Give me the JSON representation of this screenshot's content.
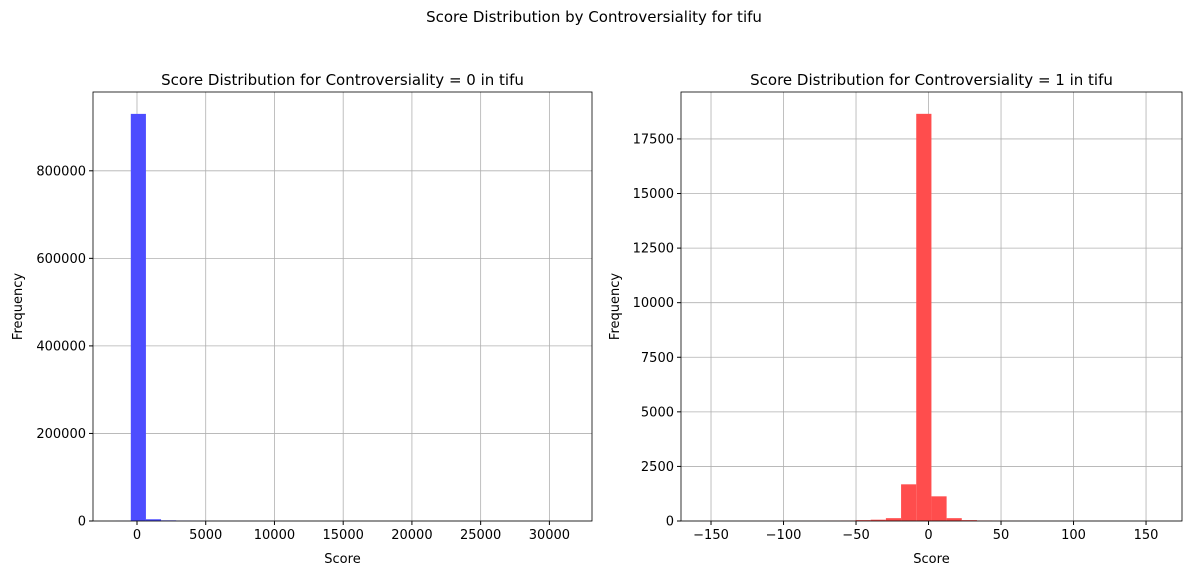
{
  "title": "Score Distribution by Controversiality for tifu",
  "chart_data": [
    {
      "type": "histogram",
      "title": "Score Distribution for Controversiality = 0 in tifu",
      "x_label": "Score",
      "y_label": "Frequency",
      "color": "#4d4dff",
      "grid": true,
      "bins": [
        -1550,
        -450,
        650,
        1750,
        2850,
        3950,
        5050,
        6150,
        7250,
        8350,
        9450,
        10550,
        11650,
        12750,
        13850,
        14950,
        16050,
        17150,
        18250,
        19350,
        20450,
        21550,
        22650,
        23750,
        24850,
        25950,
        27050,
        28150,
        29250,
        30350,
        31450
      ],
      "values": [
        300,
        930000,
        4000,
        1500,
        700,
        350,
        200,
        120,
        80,
        50,
        40,
        30,
        20,
        15,
        10,
        8,
        6,
        5,
        4,
        3,
        3,
        2,
        2,
        1,
        1,
        1,
        1,
        0,
        0,
        1
      ],
      "xlim": [
        -3200,
        33100
      ],
      "xticks": [
        0,
        5000,
        10000,
        15000,
        20000,
        25000,
        30000
      ],
      "ylim": [
        0,
        980000
      ],
      "yticks": [
        0,
        200000,
        400000,
        600000,
        800000
      ]
    },
    {
      "type": "histogram",
      "title": "Score Distribution for Controversiality = 1 in tifu",
      "x_label": "Score",
      "y_label": "Frequency",
      "color": "#ff4d4d",
      "grid": true,
      "bins": [
        -155,
        -144.53,
        -134.07,
        -123.6,
        -113.13,
        -102.67,
        -92.2,
        -81.73,
        -71.27,
        -60.8,
        -50.33,
        -39.87,
        -29.4,
        -18.93,
        -8.47,
        2,
        12.47,
        22.93,
        33.4,
        43.87,
        54.33,
        64.8,
        75.27,
        85.73,
        96.2,
        106.67,
        117.13,
        127.6,
        138.07,
        148.53,
        159
      ],
      "values": [
        1,
        0,
        0,
        1,
        2,
        3,
        5,
        8,
        12,
        20,
        40,
        60,
        130,
        1680,
        18650,
        1130,
        130,
        40,
        20,
        10,
        6,
        4,
        3,
        2,
        1,
        1,
        1,
        0,
        0,
        1
      ],
      "xlim": [
        -170.7,
        174.8
      ],
      "xticks": [
        {
          "value": -150,
          "label": "−150"
        },
        {
          "value": -100,
          "label": "−100"
        },
        {
          "value": -50,
          "label": "−50"
        },
        0,
        50,
        100,
        150
      ],
      "ylim": [
        0,
        19650
      ],
      "yticks": [
        0,
        2500,
        5000,
        7500,
        10000,
        12500,
        15000,
        17500
      ]
    }
  ]
}
